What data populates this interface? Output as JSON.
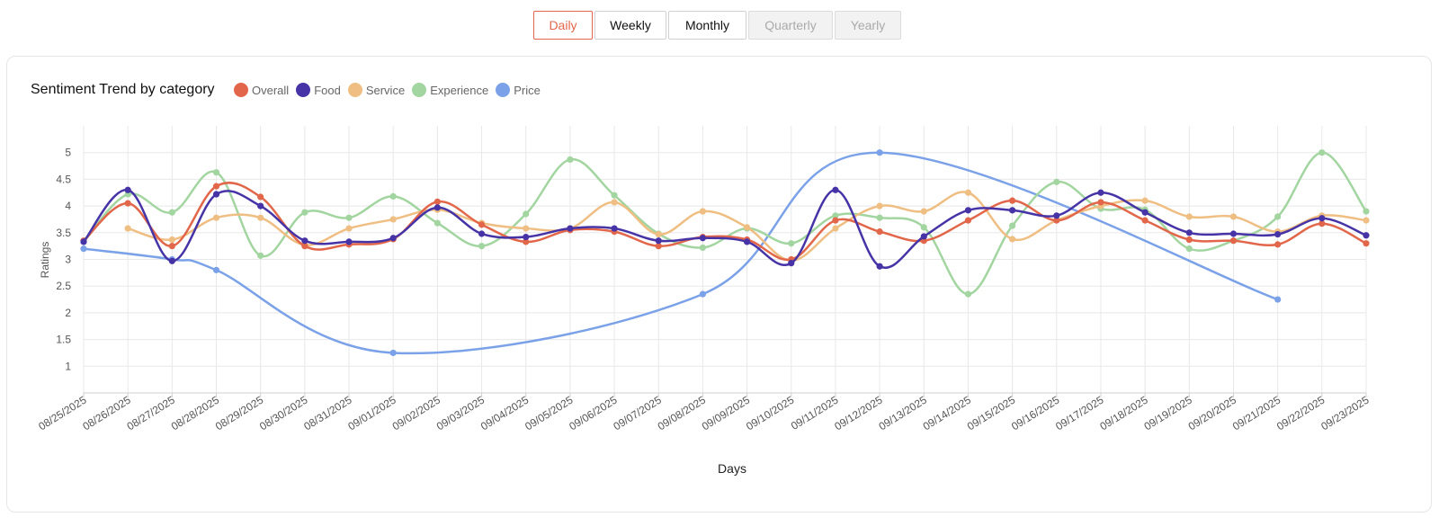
{
  "tabs": [
    {
      "label": "Daily",
      "state": "active"
    },
    {
      "label": "Weekly",
      "state": "normal"
    },
    {
      "label": "Monthly",
      "state": "normal"
    },
    {
      "label": "Quarterly",
      "state": "disabled"
    },
    {
      "label": "Yearly",
      "state": "disabled"
    }
  ],
  "chart_data": {
    "type": "line",
    "title": "Sentiment Trend by category",
    "xlabel": "Days",
    "ylabel": "Ratings",
    "ylim": [
      0.5,
      5.5
    ],
    "yticks": [
      1,
      1.5,
      2,
      2.5,
      3,
      3.5,
      4,
      4.5,
      5
    ],
    "grid": true,
    "legend_position": "top-left",
    "categories": [
      "08/25/2025",
      "08/26/2025",
      "08/27/2025",
      "08/28/2025",
      "08/29/2025",
      "08/30/2025",
      "08/31/2025",
      "09/01/2025",
      "09/02/2025",
      "09/03/2025",
      "09/04/2025",
      "09/05/2025",
      "09/06/2025",
      "09/07/2025",
      "09/08/2025",
      "09/09/2025",
      "09/10/2025",
      "09/11/2025",
      "09/12/2025",
      "09/13/2025",
      "09/14/2025",
      "09/15/2025",
      "09/16/2025",
      "09/17/2025",
      "09/18/2025",
      "09/19/2025",
      "09/20/2025",
      "09/21/2025",
      "09/22/2025",
      "09/23/2025"
    ],
    "series": [
      {
        "name": "Overall",
        "color": "#e2674a",
        "values": [
          3.35,
          4.05,
          3.25,
          4.37,
          4.17,
          3.25,
          3.28,
          3.38,
          4.08,
          3.65,
          3.33,
          3.55,
          3.52,
          3.25,
          3.42,
          3.37,
          3.0,
          3.73,
          3.52,
          3.35,
          3.73,
          4.1,
          3.73,
          4.07,
          3.73,
          3.37,
          3.35,
          3.28,
          3.67,
          3.3
        ]
      },
      {
        "name": "Food",
        "color": "#4634a7",
        "values": [
          3.33,
          4.3,
          2.97,
          4.22,
          4.0,
          3.35,
          3.33,
          3.4,
          3.97,
          3.48,
          3.42,
          3.58,
          3.58,
          3.35,
          3.4,
          3.33,
          2.93,
          4.3,
          2.87,
          3.43,
          3.92,
          3.92,
          3.82,
          4.25,
          3.88,
          3.5,
          3.48,
          3.47,
          3.77,
          3.45
        ]
      },
      {
        "name": "Service",
        "color": "#efbe82",
        "values": [
          null,
          3.58,
          3.37,
          3.78,
          3.78,
          3.27,
          3.58,
          3.75,
          3.93,
          3.68,
          3.58,
          3.58,
          4.07,
          3.47,
          3.9,
          3.6,
          2.98,
          3.58,
          4.0,
          3.9,
          4.25,
          3.38,
          3.73,
          4.0,
          4.1,
          3.8,
          3.8,
          3.52,
          3.82,
          3.73
        ]
      },
      {
        "name": "Experience",
        "color": "#a2d5a0",
        "values": [
          3.33,
          4.22,
          3.88,
          4.63,
          3.07,
          3.88,
          3.78,
          4.18,
          3.68,
          3.25,
          3.85,
          4.87,
          4.2,
          3.48,
          3.22,
          3.58,
          3.3,
          3.82,
          3.78,
          3.6,
          2.35,
          3.63,
          4.45,
          3.95,
          3.93,
          3.2,
          3.35,
          3.8,
          5.0,
          3.9
        ]
      },
      {
        "name": "Price",
        "color": "#7ba2e8",
        "values": [
          3.2,
          null,
          3.0,
          2.8,
          null,
          null,
          null,
          1.25,
          null,
          null,
          null,
          null,
          null,
          null,
          2.35,
          null,
          null,
          null,
          5.0,
          null,
          null,
          null,
          null,
          null,
          null,
          null,
          null,
          2.25,
          null,
          null
        ]
      }
    ]
  }
}
